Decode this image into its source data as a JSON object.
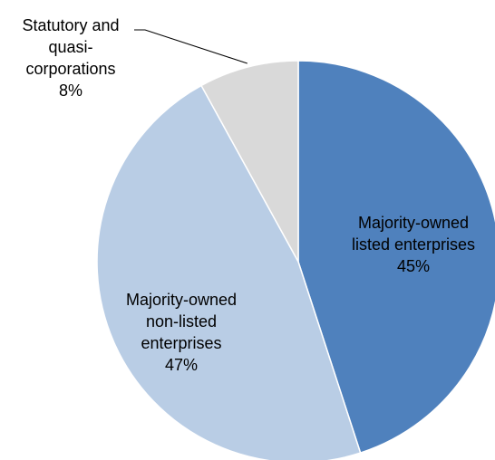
{
  "chart_data": {
    "type": "pie",
    "title": "",
    "slices": [
      {
        "label_lines": [
          "Majority-owned",
          "listed enterprises"
        ],
        "value": 45,
        "value_label": "45%",
        "color": "#4f81bd"
      },
      {
        "label_lines": [
          "Majority-owned",
          "non-listed",
          "enterprises"
        ],
        "value": 47,
        "value_label": "47%",
        "color": "#b9cde5"
      },
      {
        "label_lines": [
          "Statutory and",
          "quasi-",
          "corporations"
        ],
        "value": 8,
        "value_label": "8%",
        "color": "#d9d9d9"
      }
    ],
    "start_angle_deg": 0,
    "direction": "clockwise",
    "legend": "none",
    "label_placement": [
      "inside",
      "inside",
      "outside-with-leader-line"
    ]
  }
}
